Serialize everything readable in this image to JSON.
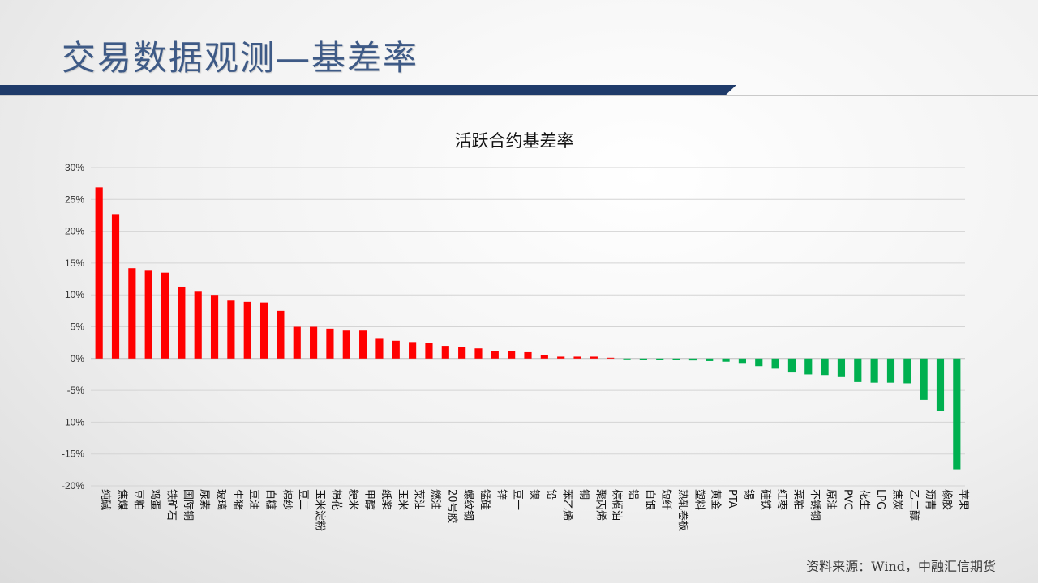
{
  "page": {
    "title": "交易数据观测—基差率",
    "source": "资料来源：Wind，中融汇信期货"
  },
  "colors": {
    "positive": "#ff0000",
    "negative": "#00b050",
    "title_text": "#3e5a86",
    "title_bar": "#1f3b6a"
  },
  "chart_data": {
    "type": "bar",
    "title": "活跃合约基差率",
    "xlabel": "",
    "ylabel": "",
    "ylim": [
      -0.2,
      0.3
    ],
    "ytick_values": [
      0.3,
      0.25,
      0.2,
      0.15,
      0.1,
      0.05,
      0.0,
      -0.05,
      -0.1,
      -0.15,
      -0.2
    ],
    "ytick_labels": [
      "30%",
      "25%",
      "20%",
      "15%",
      "10%",
      "5%",
      "0%",
      "-5%",
      "-10%",
      "-15%",
      "-20%"
    ],
    "grid": true,
    "legend": "none",
    "categories": [
      "纯碱",
      "焦煤",
      "豆粕",
      "鸡蛋",
      "铁矿石",
      "国际铜",
      "尿素",
      "玻璃",
      "生猪",
      "豆油",
      "白糖",
      "棉纱",
      "豆二",
      "玉米淀粉",
      "棉花",
      "粳米",
      "甲醇",
      "纸浆",
      "玉米",
      "菜油",
      "燃油",
      "20号胶",
      "螺纹钢",
      "锰硅",
      "锌",
      "豆一",
      "镍",
      "铅",
      "苯乙烯",
      "铜",
      "聚丙烯",
      "棕榈油",
      "铝",
      "白银",
      "短纤",
      "热轧卷板",
      "塑料",
      "黄金",
      "PTA",
      "锡",
      "硅铁",
      "红枣",
      "菜粕",
      "不锈钢",
      "原油",
      "PVC",
      "花生",
      "LPG",
      "焦炭",
      "乙二醇",
      "沥青",
      "橡胶",
      "苹果"
    ],
    "values": [
      0.269,
      0.227,
      0.142,
      0.138,
      0.135,
      0.113,
      0.105,
      0.1,
      0.091,
      0.089,
      0.088,
      0.075,
      0.05,
      0.05,
      0.047,
      0.044,
      0.044,
      0.031,
      0.028,
      0.026,
      0.025,
      0.02,
      0.018,
      0.016,
      0.012,
      0.012,
      0.01,
      0.006,
      0.003,
      0.003,
      0.003,
      0.001,
      -0.001,
      -0.002,
      -0.002,
      -0.002,
      -0.003,
      -0.004,
      -0.005,
      -0.007,
      -0.012,
      -0.016,
      -0.022,
      -0.025,
      -0.026,
      -0.028,
      -0.037,
      -0.038,
      -0.038,
      -0.039,
      -0.065,
      -0.082,
      -0.174
    ]
  }
}
